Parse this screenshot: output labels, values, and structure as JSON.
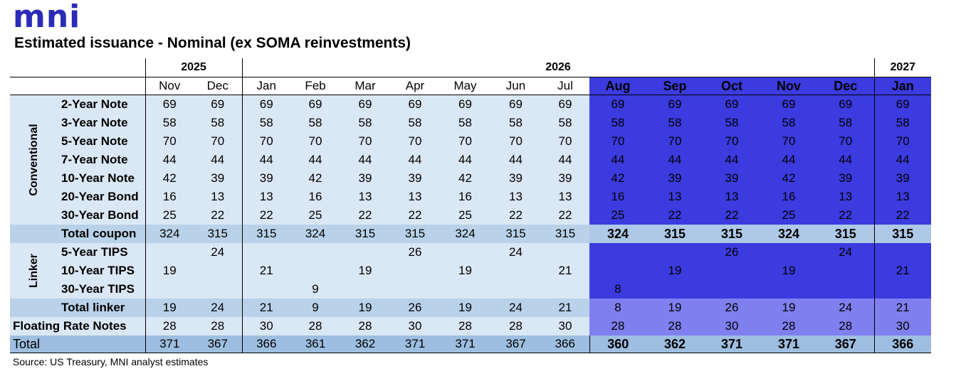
{
  "logo": "mni",
  "title": "Estimated issuance - Nominal (ex SOMA reinvestments)",
  "source": "Source: US Treasury, MNI analyst estimates",
  "years": [
    "2025",
    "2026",
    "2027"
  ],
  "months": [
    "Nov",
    "Dec",
    "Jan",
    "Feb",
    "Mar",
    "Apr",
    "May",
    "Jun",
    "Jul",
    "Aug",
    "Sep",
    "Oct",
    "Nov",
    "Dec",
    "Jan"
  ],
  "groups": {
    "conventional": "Conventional",
    "linker": "Linker"
  },
  "rows": {
    "r2y": {
      "label": "2-Year Note",
      "values": [
        "69",
        "69",
        "69",
        "69",
        "69",
        "69",
        "69",
        "69",
        "69",
        "69",
        "69",
        "69",
        "69",
        "69",
        "69"
      ]
    },
    "r3y": {
      "label": "3-Year Note",
      "values": [
        "58",
        "58",
        "58",
        "58",
        "58",
        "58",
        "58",
        "58",
        "58",
        "58",
        "58",
        "58",
        "58",
        "58",
        "58"
      ]
    },
    "r5y": {
      "label": "5-Year Note",
      "values": [
        "70",
        "70",
        "70",
        "70",
        "70",
        "70",
        "70",
        "70",
        "70",
        "70",
        "70",
        "70",
        "70",
        "70",
        "70"
      ]
    },
    "r7y": {
      "label": "7-Year Note",
      "values": [
        "44",
        "44",
        "44",
        "44",
        "44",
        "44",
        "44",
        "44",
        "44",
        "44",
        "44",
        "44",
        "44",
        "44",
        "44"
      ]
    },
    "r10y": {
      "label": "10-Year Note",
      "values": [
        "42",
        "39",
        "39",
        "42",
        "39",
        "39",
        "42",
        "39",
        "39",
        "42",
        "39",
        "39",
        "42",
        "39",
        "39"
      ]
    },
    "r20y": {
      "label": "20-Year Bond",
      "values": [
        "16",
        "13",
        "13",
        "16",
        "13",
        "13",
        "16",
        "13",
        "13",
        "16",
        "13",
        "13",
        "16",
        "13",
        "13"
      ]
    },
    "r30y": {
      "label": "30-Year Bond",
      "values": [
        "25",
        "22",
        "22",
        "25",
        "22",
        "22",
        "25",
        "22",
        "22",
        "25",
        "22",
        "22",
        "25",
        "22",
        "22"
      ]
    },
    "rtc": {
      "label": "Total coupon",
      "values": [
        "324",
        "315",
        "315",
        "324",
        "315",
        "315",
        "324",
        "315",
        "315",
        "324",
        "315",
        "315",
        "324",
        "315",
        "315"
      ]
    },
    "rt5": {
      "label": "5-Year TIPS",
      "values": [
        "",
        "24",
        "",
        "",
        "",
        "26",
        "",
        "24",
        "",
        "",
        "",
        "26",
        "",
        "24",
        ""
      ]
    },
    "rt10": {
      "label": "10-Year TIPS",
      "values": [
        "19",
        "",
        "21",
        "",
        "19",
        "",
        "19",
        "",
        "21",
        "",
        "19",
        "",
        "19",
        "",
        "21"
      ]
    },
    "rt30": {
      "label": "30-Year TIPS",
      "values": [
        "",
        "",
        "",
        "9",
        "",
        "",
        "",
        "",
        "",
        "8",
        "",
        "",
        "",
        "",
        ""
      ]
    },
    "rtl": {
      "label": "Total linker",
      "values": [
        "19",
        "24",
        "21",
        "9",
        "19",
        "26",
        "19",
        "24",
        "21",
        "8",
        "19",
        "26",
        "19",
        "24",
        "21"
      ]
    },
    "rfrn": {
      "label": "Floating Rate Notes",
      "values": [
        "28",
        "28",
        "30",
        "28",
        "28",
        "30",
        "28",
        "28",
        "30",
        "28",
        "28",
        "30",
        "28",
        "28",
        "30"
      ]
    },
    "rtot": {
      "label": "Total",
      "values": [
        "371",
        "367",
        "366",
        "361",
        "362",
        "371",
        "371",
        "367",
        "366",
        "360",
        "362",
        "371",
        "371",
        "367",
        "366"
      ]
    }
  }
}
